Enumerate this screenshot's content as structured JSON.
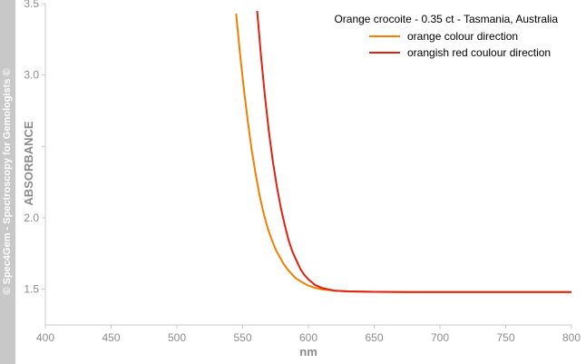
{
  "watermark": "© Spec4Gem - Spectroscopy for Gemologists ©",
  "chart_data": {
    "type": "line",
    "title": "Orange crocoite - 0.35 ct - Tasmania, Australia",
    "xlabel": "nm",
    "ylabel": "ABSORBANCE",
    "xlim": [
      400,
      800
    ],
    "ylim": [
      1.25,
      3.5
    ],
    "x_ticks": [
      400,
      450,
      500,
      550,
      600,
      650,
      700,
      750,
      800
    ],
    "y_ticks": [
      1.5,
      2.0,
      2.5,
      3.0,
      3.5
    ],
    "y_tick_labels": [
      "1.5",
      "2.0",
      "",
      "3.0",
      "3.5"
    ],
    "grid": false,
    "legend": "top-right",
    "series": [
      {
        "name": "orange colour direction",
        "color": "#f08000",
        "x": [
          545,
          548,
          551,
          554,
          557,
          560,
          563,
          566,
          569,
          572,
          575,
          578,
          581,
          584,
          587,
          590,
          595,
          600,
          605,
          610,
          615,
          620,
          630,
          640,
          650,
          675,
          700,
          725,
          750,
          775,
          800
        ],
        "y": [
          3.43,
          3.15,
          2.9,
          2.67,
          2.47,
          2.3,
          2.15,
          2.03,
          1.93,
          1.85,
          1.78,
          1.73,
          1.68,
          1.64,
          1.61,
          1.58,
          1.55,
          1.525,
          1.51,
          1.5,
          1.495,
          1.49,
          1.485,
          1.483,
          1.482,
          1.481,
          1.48,
          1.48,
          1.48,
          1.48,
          1.48
        ]
      },
      {
        "name": "orangish red coulour direction",
        "color": "#e02010",
        "x": [
          561,
          564,
          567,
          570,
          573,
          576,
          579,
          582,
          585,
          588,
          591,
          594,
          597,
          600,
          605,
          610,
          615,
          620,
          630,
          640,
          650,
          675,
          700,
          725,
          750,
          775,
          800
        ],
        "y": [
          3.45,
          3.13,
          2.85,
          2.6,
          2.39,
          2.22,
          2.07,
          1.95,
          1.84,
          1.76,
          1.7,
          1.64,
          1.6,
          1.57,
          1.53,
          1.51,
          1.5,
          1.49,
          1.485,
          1.483,
          1.482,
          1.481,
          1.48,
          1.48,
          1.48,
          1.48,
          1.48
        ]
      }
    ]
  }
}
